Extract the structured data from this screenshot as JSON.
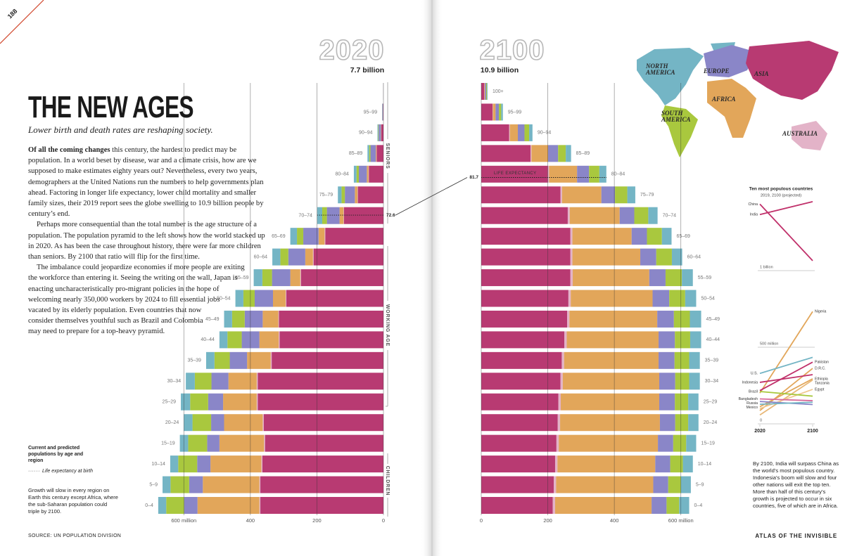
{
  "page_number": "188",
  "title": "THE NEW AGES",
  "subtitle": "Lower birth and death rates are reshaping society.",
  "body": {
    "lead": "Of all the coming changes",
    "paragraphs": [
      "this century, the hardest to predict may be population. In a world beset by disease, war and a climate crisis, how are we supposed to make estimates eighty years out? Nevertheless, every two years, demographers at the United Nations run the numbers to help governments plan ahead. Factoring in longer life expectancy, lower child mortality and smaller family sizes, their 2019 report sees the globe swelling to 10.9 billion people by century’s end.",
      "Perhaps more consequential than the total number is the age structure of a population. The population pyramid to the left shows how the world stacked up in 2020. As has been the case throughout history, there were far more children than seniors. By 2100 that ratio will flip for the first time.",
      "The imbalance could jeopardize economies if more people are exiting the workforce than entering it. Seeing the writing on the wall, Japan is enacting uncharacteristically pro-migrant policies in the hope of welcoming nearly 350,000 workers by 2024 to fill essential jobs vacated by its elderly population. Even countries that now consider themselves youthful such as Brazil and Colombia may need to prepare for a top-heavy pyramid."
    ]
  },
  "age_groups": [
    "SENIORS",
    "WORKING AGE",
    "CHILDREN"
  ],
  "life_expectancy_label": "LIFE EXPECTANCY",
  "legend": {
    "title": "Current and predicted populations by age and region",
    "life_expectancy": "Life expectancy at birth"
  },
  "note": "Growth will slow in every region on Earth this century except Africa, where the sub-Saharan population could triple by 2100.",
  "source": "SOURCE: UN POPULATION DIVISION",
  "footer": "ATLAS OF THE INVISIBLE",
  "chart_data": [
    {
      "type": "pyramid",
      "title": "2020",
      "subtitle": "7.7 billion",
      "reversed": true,
      "categories": [
        "0–4",
        "5–9",
        "10–14",
        "15–19",
        "20–24",
        "25–29",
        "30–34",
        "35–39",
        "40–44",
        "45–49",
        "50–54",
        "55–59",
        "60–64",
        "65–69",
        "70–74",
        "75–79",
        "80–84",
        "85–89",
        "90–94",
        "95–99",
        null
      ],
      "series": [
        {
          "name": "ASIA",
          "color": "#b83a72",
          "values": [
            370,
            370,
            364,
            356,
            360,
            378,
            378,
            336,
            312,
            314,
            292,
            248,
            210,
            175,
            119,
            77,
            44,
            20.5,
            6.3,
            1.1,
            0.15
          ]
        },
        {
          "name": "AUSTRALIA",
          "color": "#e3b3c8",
          "values": [
            3,
            3,
            3,
            3,
            3,
            3,
            3,
            3,
            3,
            2,
            2,
            2,
            2,
            2,
            1,
            1,
            1,
            0.5,
            0.2,
            0.1,
            0.02
          ]
        },
        {
          "name": "AFRICA",
          "color": "#e2a65a",
          "values": [
            186,
            170,
            153,
            134,
            116,
            101,
            85,
            71,
            58,
            47,
            38,
            30,
            23,
            18,
            12,
            8,
            5,
            2,
            1,
            0.2,
            0.03
          ]
        },
        {
          "name": "EUROPE",
          "color": "#8a86c8",
          "values": [
            40,
            41,
            40,
            37,
            39,
            45,
            51,
            52,
            53,
            54,
            55,
            55,
            51,
            46,
            38,
            30,
            24,
            16,
            7,
            1.7,
            0.25
          ]
        },
        {
          "name": "SOUTH AMERICA",
          "color": "#a9c83e",
          "values": [
            54,
            56,
            57,
            57,
            56,
            54,
            50,
            46,
            43,
            38,
            34,
            29,
            24,
            19,
            14,
            10,
            7,
            4,
            1.5,
            0.4,
            0.07
          ]
        },
        {
          "name": "NORTH AMERICA",
          "color": "#74b5c5",
          "values": [
            24,
            24,
            24,
            25,
            26,
            28,
            27,
            25,
            24,
            24,
            24,
            26,
            24,
            20,
            15,
            11,
            8,
            5,
            2,
            0.5,
            0.08
          ]
        }
      ],
      "xlim": [
        0,
        700
      ],
      "xticks": [
        {
          "value": 600,
          "label": "600 million"
        },
        400,
        200,
        0
      ],
      "life_expectancy": 72.6
    },
    {
      "type": "pyramid",
      "title": "2100",
      "subtitle": "10.9 billion",
      "reversed": false,
      "categories": [
        "0–4",
        "5–9",
        "10–14",
        "15–19",
        "20–24",
        "25–29",
        "30–34",
        "35–39",
        "40–44",
        "45–49",
        "50–54",
        "55–59",
        "60–64",
        "65–69",
        "70–74",
        "75–79",
        "80–84",
        "85–89",
        "90–94",
        "95–99",
        "100+"
      ],
      "series": [
        {
          "color": "#b83a72",
          "values": [
            215,
            218,
            222,
            226,
            230,
            232,
            238,
            242,
            250,
            258,
            262,
            268,
            268,
            268,
            260,
            238,
            200,
            148,
            84,
            34,
            9
          ]
        },
        {
          "color": "#e3b3c8",
          "values": [
            7,
            7,
            7,
            7,
            7,
            7,
            7,
            7,
            7,
            7,
            7,
            7,
            6,
            6,
            6,
            5,
            4,
            3,
            2,
            1,
            0.3
          ]
        },
        {
          "color": "#e2a65a",
          "values": [
            290,
            292,
            294,
            298,
            300,
            296,
            290,
            284,
            276,
            264,
            246,
            230,
            204,
            178,
            150,
            118,
            84,
            50,
            24,
            8,
            2
          ]
        },
        {
          "color": "#8a86c8",
          "values": [
            45,
            45,
            45,
            46,
            46,
            47,
            48,
            48,
            49,
            50,
            50,
            49,
            48,
            46,
            44,
            41,
            36,
            30,
            20,
            10,
            3.5
          ]
        },
        {
          "color": "#a9c83e",
          "values": [
            38,
            38,
            38,
            39,
            39,
            40,
            42,
            44,
            46,
            48,
            48,
            49,
            47,
            45,
            42,
            37,
            31,
            23,
            14,
            7,
            2.4
          ]
        },
        {
          "color": "#74b5c5",
          "values": [
            30,
            30,
            30,
            30,
            31,
            31,
            32,
            32,
            33,
            34,
            33,
            33,
            31,
            29,
            28,
            24,
            21,
            16,
            10,
            5,
            1.8
          ]
        }
      ],
      "xlim": [
        0,
        700
      ],
      "xticks": [
        0,
        200,
        400,
        {
          "value": 600,
          "label": "600 million"
        }
      ],
      "life_expectancy": 81.7
    },
    {
      "type": "slope",
      "title": "Ten most populous countries",
      "subtitle": "2019, 2100 (projected)",
      "x": [
        2020,
        2100
      ],
      "xlim": [
        2020,
        2100
      ],
      "xticks": [
        2020,
        2100
      ],
      "ylim": [
        0,
        1500
      ],
      "yticks": [
        0,
        {
          "value": 500,
          "label": "500 million"
        },
        {
          "value": 1000,
          "label": "1 billion"
        }
      ],
      "series": [
        {
          "name": "China",
          "color": "#c0306a",
          "values": [
            1434,
            1065
          ]
        },
        {
          "name": "India",
          "color": "#c0306a",
          "values": [
            1366,
            1450
          ]
        },
        {
          "name": "Nigeria",
          "color": "#e2a65a",
          "values": [
            201,
            733
          ]
        },
        {
          "name": "U.S.",
          "color": "#74b5c5",
          "values": [
            329,
            434
          ]
        },
        {
          "name": "Pakistan",
          "color": "#c0306a",
          "values": [
            217,
            403
          ]
        },
        {
          "name": "D.R.C.",
          "color": "#e2a65a",
          "values": [
            87,
            362
          ]
        },
        {
          "name": "Indonesia",
          "color": "#c0306a",
          "values": [
            271,
            321
          ]
        },
        {
          "name": "Ethiopia",
          "color": "#e2a65a",
          "values": [
            112,
            294
          ]
        },
        {
          "name": "Tanzania",
          "color": "#e8b878",
          "values": [
            58,
            286
          ]
        },
        {
          "name": "Egypt",
          "color": "#f0c890",
          "values": [
            100,
            225
          ]
        },
        {
          "name": "Brazil",
          "color": "#a9c83e",
          "values": [
            211,
            181
          ]
        },
        {
          "name": "Bangladesh",
          "color": "#d86a9a",
          "values": [
            163,
            151
          ]
        },
        {
          "name": "Russia",
          "color": "#8a86c8",
          "values": [
            146,
            126
          ]
        },
        {
          "name": "Mexico",
          "color": "#74b5c5",
          "values": [
            128,
            141
          ]
        }
      ],
      "annotation": "By 2100, India will surpass China as the world’s most populous country. Indonesia’s boom will slow and four other nations will exit the top ten. More than half of this century’s growth is projected to occur in six countries, five of which are in Africa."
    }
  ]
}
